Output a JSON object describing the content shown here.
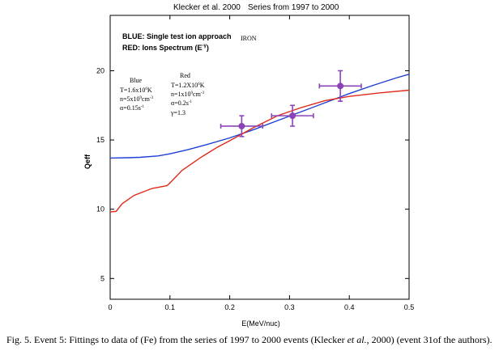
{
  "chart_data": {
    "type": "line",
    "header_left": "Klecker et al. 2000",
    "header_right": "Series from 1997 to 2000",
    "xlabel": "E(MeV/nuc)",
    "ylabel": "Qeff",
    "xlim": [
      0,
      0.5
    ],
    "ylim": [
      3.5,
      24
    ],
    "xticks": [
      0,
      0.1,
      0.2,
      0.3,
      0.4,
      0.5
    ],
    "xtick_labels": [
      "0",
      "0.1",
      "0.2",
      "0.3",
      "0.4",
      "0.5"
    ],
    "yticks": [
      5,
      10,
      15,
      20
    ],
    "ytick_labels": [
      "5",
      "10",
      "15",
      "20"
    ],
    "legend": {
      "blue": "BLUE: Single test ion approach",
      "red": "RED: Ions Spectrum (E",
      "red_exp": "-γ",
      "red_close": ")",
      "element": "IRON"
    },
    "param_blue": {
      "title": "Blue",
      "t1": "T=1.6x10",
      "t1_exp": "6",
      "t1_unit": "K",
      "n1": "n=5x10",
      "n1_exp": "9",
      "n1_unit": "cm",
      "n1_unit_exp": "-3",
      "a1": "α=0.15s",
      "a1_exp": "-1"
    },
    "param_red": {
      "title": "Red",
      "t1": "T=1.2X10",
      "t1_exp": "6",
      "t1_unit": "K",
      "n1": "n=1x10",
      "n1_exp": "9",
      "n1_unit": "cm",
      "n1_unit_exp": "-3",
      "a1": "α=0.2s",
      "a1_exp": "-1",
      "g1": "γ=1.3"
    },
    "series": [
      {
        "name": "Single test ion approach",
        "color": "#1f3fd6",
        "x": [
          0.0,
          0.03,
          0.05,
          0.08,
          0.1,
          0.13,
          0.16,
          0.2,
          0.24,
          0.28,
          0.32,
          0.36,
          0.4,
          0.44,
          0.48,
          0.5
        ],
        "y": [
          13.7,
          13.72,
          13.75,
          13.85,
          14.0,
          14.3,
          14.65,
          15.15,
          15.75,
          16.4,
          17.05,
          17.7,
          18.35,
          18.95,
          19.5,
          19.75
        ]
      },
      {
        "name": "Ions Spectrum",
        "color": "#e02a1a",
        "x": [
          0.0,
          0.01,
          0.02,
          0.04,
          0.07,
          0.095,
          0.1,
          0.12,
          0.15,
          0.18,
          0.2,
          0.24,
          0.28,
          0.32,
          0.36,
          0.4,
          0.45,
          0.5
        ],
        "y": [
          9.8,
          9.85,
          10.4,
          11.0,
          11.5,
          11.7,
          11.9,
          12.8,
          13.7,
          14.5,
          14.95,
          15.9,
          16.75,
          17.35,
          17.85,
          18.15,
          18.4,
          18.6
        ]
      }
    ],
    "data_points": {
      "color": "#8b44b8",
      "x": [
        0.22,
        0.305,
        0.385
      ],
      "y": [
        16.0,
        16.75,
        18.9
      ],
      "xerr": [
        0.035,
        0.035,
        0.035
      ],
      "yerr": [
        0.75,
        0.75,
        1.1
      ]
    },
    "caption": {
      "part1": "Fig. 5. Event 5: Fittings to data of (Fe) from the series of 1997 to  2000 events (Klecker ",
      "italic": "et al.",
      "part2": ", 2000) (event 31of the authors)."
    }
  }
}
